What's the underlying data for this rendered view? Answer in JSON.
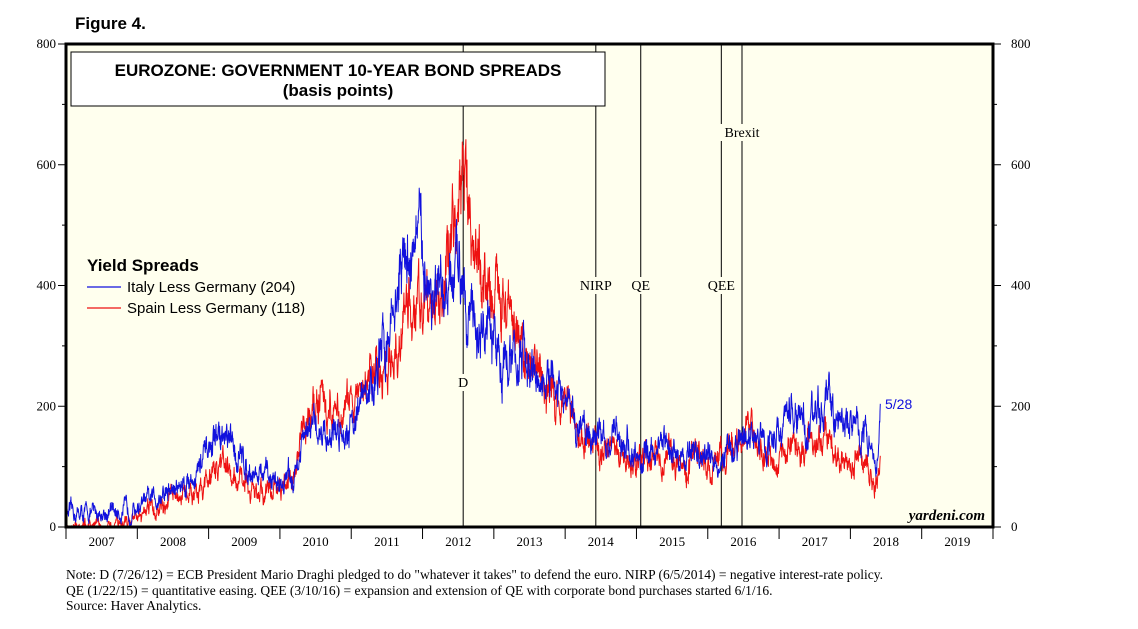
{
  "figure_label": "Figure 4.",
  "notes": [
    "Note: D (7/26/12) = ECB President Mario Draghi pledged to do \"whatever it takes\" to defend the euro. NIRP (6/5/2014) = negative interest-rate policy.",
    "QE (1/22/15) = quantitative easing. QEE (3/10/16) = expansion and extension of QE with corporate bond purchases started 6/1/16.",
    "Source: Haver Analytics."
  ],
  "colors": {
    "plot_bg": "#ffffee",
    "italy": "#1111dd",
    "spain": "#ee1111",
    "axis": "#000000"
  },
  "chart_data": {
    "type": "line",
    "title": "EUROZONE: GOVERNMENT 10-YEAR BOND SPREADS",
    "subtitle": "(basis points)",
    "xlabel": "",
    "ylabel": "",
    "xlim": [
      2007.0,
      2020.0
    ],
    "ylim": [
      0,
      800
    ],
    "yticks": [
      0,
      200,
      400,
      600,
      800
    ],
    "xticks": [
      "2007",
      "2008",
      "2009",
      "2010",
      "2011",
      "2012",
      "2013",
      "2014",
      "2015",
      "2016",
      "2017",
      "2018",
      "2019"
    ],
    "legend": {
      "title": "Yield Spreads",
      "position": "left",
      "entries": [
        "Italy Less Germany (204)",
        "Spain Less Germany (118)"
      ]
    },
    "watermark": "yardeni.com",
    "end_label": "5/28",
    "vlines": [
      {
        "x": 2012.57,
        "label": "D"
      },
      {
        "x": 2014.43,
        "label": "NIRP"
      },
      {
        "x": 2015.06,
        "label": "QE"
      },
      {
        "x": 2016.19,
        "label": "QEE"
      },
      {
        "x": 2016.48,
        "label": "Brexit"
      }
    ],
    "series": [
      {
        "name": "Italy Less Germany",
        "x": [
          2007.0,
          2007.5,
          2007.9,
          2008.2,
          2008.5,
          2008.8,
          2009.0,
          2009.15,
          2009.4,
          2009.7,
          2010.0,
          2010.2,
          2010.35,
          2010.5,
          2010.7,
          2010.9,
          2011.1,
          2011.3,
          2011.45,
          2011.6,
          2011.75,
          2011.9,
          2012.0,
          2012.15,
          2012.3,
          2012.45,
          2012.55,
          2012.7,
          2012.85,
          2013.0,
          2013.2,
          2013.4,
          2013.6,
          2013.8,
          2014.0,
          2014.2,
          2014.4,
          2014.6,
          2014.8,
          2015.0,
          2015.2,
          2015.4,
          2015.6,
          2015.8,
          2016.0,
          2016.2,
          2016.4,
          2016.6,
          2016.8,
          2017.0,
          2017.2,
          2017.4,
          2017.6,
          2017.8,
          2018.0,
          2018.2,
          2018.3,
          2018.38,
          2018.42
        ],
        "values": [
          22,
          23,
          28,
          45,
          62,
          85,
          125,
          155,
          120,
          85,
          75,
          85,
          145,
          165,
          155,
          165,
          195,
          230,
          290,
          370,
          440,
          480,
          455,
          380,
          350,
          410,
          460,
          335,
          330,
          300,
          275,
          280,
          235,
          235,
          200,
          160,
          155,
          150,
          145,
          110,
          120,
          140,
          115,
          125,
          110,
          115,
          135,
          150,
          140,
          160,
          190,
          170,
          205,
          180,
          175,
          160,
          125,
          120,
          204
        ]
      },
      {
        "name": "Spain Less Germany",
        "x": [
          2007.0,
          2007.5,
          2007.9,
          2008.2,
          2008.5,
          2008.8,
          2009.0,
          2009.15,
          2009.4,
          2009.7,
          2010.0,
          2010.2,
          2010.35,
          2010.5,
          2010.7,
          2010.9,
          2011.1,
          2011.3,
          2011.45,
          2011.6,
          2011.75,
          2011.9,
          2012.0,
          2012.15,
          2012.3,
          2012.45,
          2012.55,
          2012.7,
          2012.85,
          2013.0,
          2013.2,
          2013.4,
          2013.6,
          2013.8,
          2014.0,
          2014.2,
          2014.4,
          2014.6,
          2014.8,
          2015.0,
          2015.2,
          2015.4,
          2015.6,
          2015.8,
          2016.0,
          2016.2,
          2016.4,
          2016.6,
          2016.8,
          2017.0,
          2017.2,
          2017.4,
          2017.6,
          2017.8,
          2018.0,
          2018.2,
          2018.3,
          2018.38,
          2018.42
        ],
        "values": [
          5,
          6,
          10,
          28,
          45,
          58,
          75,
          105,
          80,
          60,
          65,
          80,
          175,
          215,
          200,
          185,
          230,
          260,
          260,
          310,
          360,
          385,
          365,
          350,
          405,
          540,
          600,
          455,
          415,
          400,
          330,
          300,
          260,
          230,
          195,
          150,
          140,
          135,
          120,
          105,
          110,
          130,
          100,
          120,
          105,
          130,
          140,
          155,
          125,
          120,
          135,
          130,
          145,
          120,
          105,
          120,
          80,
          75,
          118
        ]
      }
    ]
  }
}
